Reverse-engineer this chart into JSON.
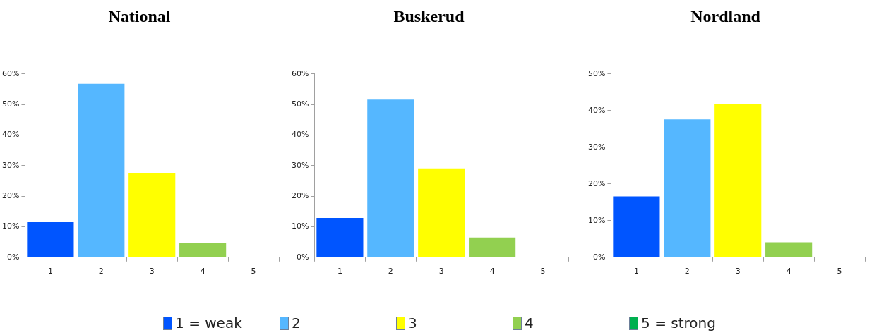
{
  "chart_data": [
    {
      "type": "bar",
      "title": "National",
      "categories": [
        "1",
        "2",
        "3",
        "4",
        "5"
      ],
      "ylim": [
        0,
        60
      ],
      "yticks": [
        {
          "value": 0,
          "label": "0%"
        },
        {
          "value": 10,
          "label": "10%"
        },
        {
          "value": 20,
          "label": "20%"
        },
        {
          "value": 30,
          "label": "30%"
        },
        {
          "value": 40,
          "label": "40%"
        },
        {
          "value": 50,
          "label": "50%"
        },
        {
          "value": 60,
          "label": "60%"
        }
      ],
      "grid": false,
      "values": [
        11.5,
        56.8,
        27.5,
        4.6,
        0
      ],
      "colors": [
        "#0055ff",
        "#55b7ff",
        "#ffff00",
        "#92d050",
        "#00b050"
      ]
    },
    {
      "type": "bar",
      "title": "Buskerud",
      "categories": [
        "1",
        "2",
        "3",
        "4",
        "5"
      ],
      "ylim": [
        0,
        60
      ],
      "yticks": [
        {
          "value": 0,
          "label": "0%"
        },
        {
          "value": 10,
          "label": "10%"
        },
        {
          "value": 20,
          "label": "20%"
        },
        {
          "value": 30,
          "label": "30%"
        },
        {
          "value": 40,
          "label": "40%"
        },
        {
          "value": 50,
          "label": "50%"
        },
        {
          "value": 60,
          "label": "60%"
        }
      ],
      "grid": false,
      "legend": "bottom",
      "series": [
        {
          "name": "1 = weak",
          "color": "#0055ff",
          "values": [
            12.9,
            null,
            null,
            null,
            null
          ]
        },
        {
          "name": "2",
          "color": "#55b7ff",
          "values": [
            null,
            51.6,
            null,
            null,
            null
          ]
        },
        {
          "name": "3",
          "color": "#ffff00",
          "values": [
            null,
            null,
            29.1,
            null,
            null
          ]
        },
        {
          "name": "4",
          "color": "#92d050",
          "values": [
            null,
            null,
            null,
            6.5,
            null
          ]
        },
        {
          "name": "5 = strong",
          "color": "#00b050",
          "values": [
            null,
            null,
            null,
            null,
            0
          ]
        }
      ]
    },
    {
      "type": "bar",
      "title": "Nordland",
      "categories": [
        "1",
        "2",
        "3",
        "4",
        "5"
      ],
      "ylim": [
        0,
        50
      ],
      "yticks": [
        {
          "value": 0,
          "label": "0%"
        },
        {
          "value": 10,
          "label": "10%"
        },
        {
          "value": 20,
          "label": "20%"
        },
        {
          "value": 30,
          "label": "30%"
        },
        {
          "value": 40,
          "label": "40%"
        },
        {
          "value": 50,
          "label": "50%"
        }
      ],
      "grid": false,
      "values": [
        16.6,
        37.6,
        41.7,
        4.1,
        0
      ],
      "colors": [
        "#0055ff",
        "#55b7ff",
        "#ffff00",
        "#92d050",
        "#00b050"
      ]
    }
  ]
}
